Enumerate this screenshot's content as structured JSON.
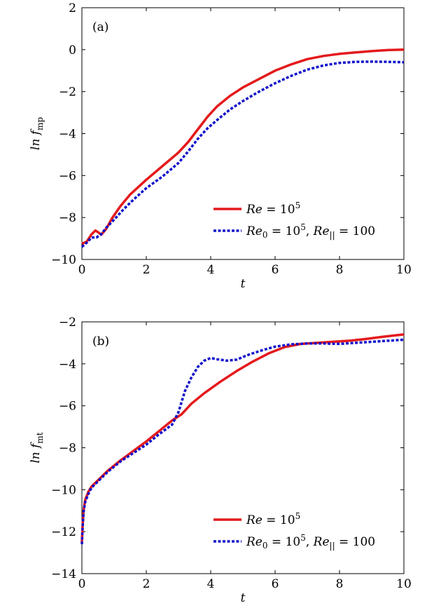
{
  "chart_data": [
    {
      "type": "line",
      "panel_label": "(a)",
      "xlabel": "t",
      "ylabel": "ln f",
      "ylabel_sub": "mp",
      "xlim": [
        0,
        10
      ],
      "ylim": [
        -10,
        2
      ],
      "xticks": [
        0,
        2,
        4,
        6,
        8,
        10
      ],
      "xtick_labels": [
        "0",
        "2",
        "4",
        "6",
        "8",
        "10"
      ],
      "yticks": [
        2,
        0,
        -2,
        -4,
        -6,
        -8,
        -10
      ],
      "ytick_labels": [
        "2",
        "0",
        "−2",
        "−4",
        "−6",
        "−8",
        "−10"
      ],
      "legend_position": "lower-right",
      "series": [
        {
          "name": "Re = 10^5",
          "legend_parts": [
            "Re",
            " = 10",
            "5"
          ],
          "color": "#e41a1c",
          "style": "solid",
          "x": [
            0,
            0.15,
            0.3,
            0.42,
            0.52,
            0.6,
            0.75,
            0.95,
            1.2,
            1.5,
            2,
            2.5,
            3,
            3.3,
            3.6,
            3.9,
            4.2,
            4.6,
            5,
            5.5,
            6,
            6.5,
            7,
            7.5,
            8,
            8.5,
            9,
            9.5,
            10
          ],
          "y": [
            -9.25,
            -9.15,
            -8.8,
            -8.62,
            -8.72,
            -8.82,
            -8.55,
            -8.0,
            -7.45,
            -6.9,
            -6.2,
            -5.55,
            -4.9,
            -4.4,
            -3.8,
            -3.2,
            -2.7,
            -2.2,
            -1.8,
            -1.4,
            -1.0,
            -0.7,
            -0.45,
            -0.3,
            -0.2,
            -0.13,
            -0.07,
            -0.02,
            0.0
          ]
        },
        {
          "name": "Re0 = 10^5, Re|| = 100",
          "legend_parts": [
            "Re",
            "0",
            " = 10",
            "5",
            ",  ",
            "Re",
            "||",
            " = 100"
          ],
          "color": "#1111cc",
          "style": "dotted",
          "x": [
            0,
            0.15,
            0.3,
            0.45,
            0.6,
            0.75,
            1.0,
            1.3,
            1.6,
            2,
            2.5,
            3,
            3.3,
            3.6,
            3.9,
            4.2,
            4.6,
            5,
            5.5,
            6,
            6.5,
            7,
            7.5,
            8,
            8.5,
            9,
            9.5,
            10
          ],
          "y": [
            -9.4,
            -9.2,
            -8.95,
            -8.95,
            -8.8,
            -8.5,
            -8.1,
            -7.6,
            -7.15,
            -6.6,
            -6.05,
            -5.4,
            -4.85,
            -4.25,
            -3.75,
            -3.35,
            -2.85,
            -2.45,
            -2.0,
            -1.6,
            -1.25,
            -0.95,
            -0.75,
            -0.63,
            -0.58,
            -0.57,
            -0.58,
            -0.6
          ]
        }
      ]
    },
    {
      "type": "line",
      "panel_label": "(b)",
      "xlabel": "t",
      "ylabel": "ln f",
      "ylabel_sub": "mt",
      "xlim": [
        0,
        10
      ],
      "ylim": [
        -14,
        -2
      ],
      "xticks": [
        0,
        2,
        4,
        6,
        8,
        10
      ],
      "xtick_labels": [
        "0",
        "2",
        "4",
        "6",
        "8",
        "10"
      ],
      "yticks": [
        -2,
        -4,
        -6,
        -8,
        -10,
        -12,
        -14
      ],
      "ytick_labels": [
        "−2",
        "−4",
        "−6",
        "−8",
        "−10",
        "−12",
        "−14"
      ],
      "legend_position": "lower-right",
      "series": [
        {
          "name": "Re = 10^5",
          "legend_parts": [
            "Re",
            " = 10",
            "5"
          ],
          "color": "#e41a1c",
          "style": "solid",
          "x": [
            0,
            0.02,
            0.05,
            0.1,
            0.2,
            0.3,
            0.5,
            0.8,
            1.2,
            1.6,
            2,
            2.4,
            2.8,
            3.1,
            3.4,
            3.8,
            4.3,
            4.8,
            5.3,
            5.8,
            6.3,
            6.8,
            7.3,
            7.8,
            8.3,
            8.8,
            9.3,
            9.7,
            10
          ],
          "y": [
            -12.5,
            -11.8,
            -11.0,
            -10.5,
            -10.1,
            -9.85,
            -9.55,
            -9.1,
            -8.6,
            -8.15,
            -7.7,
            -7.2,
            -6.7,
            -6.4,
            -5.9,
            -5.4,
            -4.85,
            -4.35,
            -3.9,
            -3.5,
            -3.2,
            -3.05,
            -3.0,
            -2.95,
            -2.9,
            -2.82,
            -2.72,
            -2.65,
            -2.6
          ]
        },
        {
          "name": "Re0 = 10^5, Re|| = 100",
          "legend_parts": [
            "Re",
            "0",
            " = 10",
            "5",
            ",  ",
            "Re",
            "||",
            " = 100"
          ],
          "color": "#1111cc",
          "style": "dotted",
          "x": [
            0,
            0.02,
            0.05,
            0.1,
            0.2,
            0.3,
            0.5,
            0.8,
            1.2,
            1.6,
            2,
            2.4,
            2.8,
            3.0,
            3.2,
            3.4,
            3.6,
            3.8,
            4.0,
            4.2,
            4.5,
            4.8,
            5.2,
            5.6,
            6,
            6.5,
            7,
            7.5,
            8,
            8.5,
            9,
            9.5,
            10
          ],
          "y": [
            -12.6,
            -11.9,
            -11.1,
            -10.6,
            -10.2,
            -9.9,
            -9.6,
            -9.15,
            -8.65,
            -8.25,
            -7.85,
            -7.35,
            -6.9,
            -6.3,
            -5.3,
            -4.65,
            -4.15,
            -3.85,
            -3.72,
            -3.78,
            -3.85,
            -3.8,
            -3.55,
            -3.35,
            -3.18,
            -3.07,
            -3.03,
            -3.03,
            -3.05,
            -3.0,
            -2.95,
            -2.9,
            -2.85
          ]
        }
      ]
    }
  ]
}
